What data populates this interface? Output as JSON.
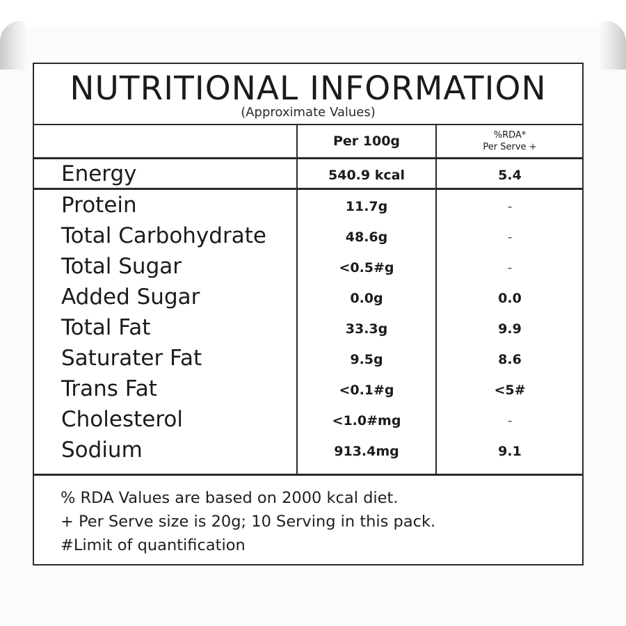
{
  "label": {
    "title": "NUTRITIONAL INFORMATION",
    "subtitle": "(Approximate Values)",
    "columns": {
      "per100": "Per 100g",
      "rda_line1": "%RDA*",
      "rda_line2": "Per Serve +"
    },
    "energy": {
      "name": "Energy",
      "per100": "540.9 kcal",
      "rda": "5.4"
    },
    "nutrients": [
      {
        "name": "Protein",
        "per100": "11.7g",
        "rda": "-"
      },
      {
        "name": "Total Carbohydrate",
        "per100": "48.6g",
        "rda": "-"
      },
      {
        "name": "Total Sugar",
        "per100": "<0.5#g",
        "rda": "-"
      },
      {
        "name": "Added Sugar",
        "per100": "0.0g",
        "rda": "0.0"
      },
      {
        "name": "Total Fat",
        "per100": "33.3g",
        "rda": "9.9"
      },
      {
        "name": "Saturater Fat",
        "per100": "9.5g",
        "rda": "8.6"
      },
      {
        "name": "Trans Fat",
        "per100": "<0.1#g",
        "rda": "<5#"
      },
      {
        "name": "Cholesterol",
        "per100": "<1.0#mg",
        "rda": "-"
      },
      {
        "name": "Sodium",
        "per100": "913.4mg",
        "rda": "9.1"
      }
    ],
    "notes": [
      "% RDA Values are based on 2000 kcal diet.",
      "+ Per Serve size is 20g; 10 Serving in this pack.",
      "#Limit of quantification"
    ]
  }
}
